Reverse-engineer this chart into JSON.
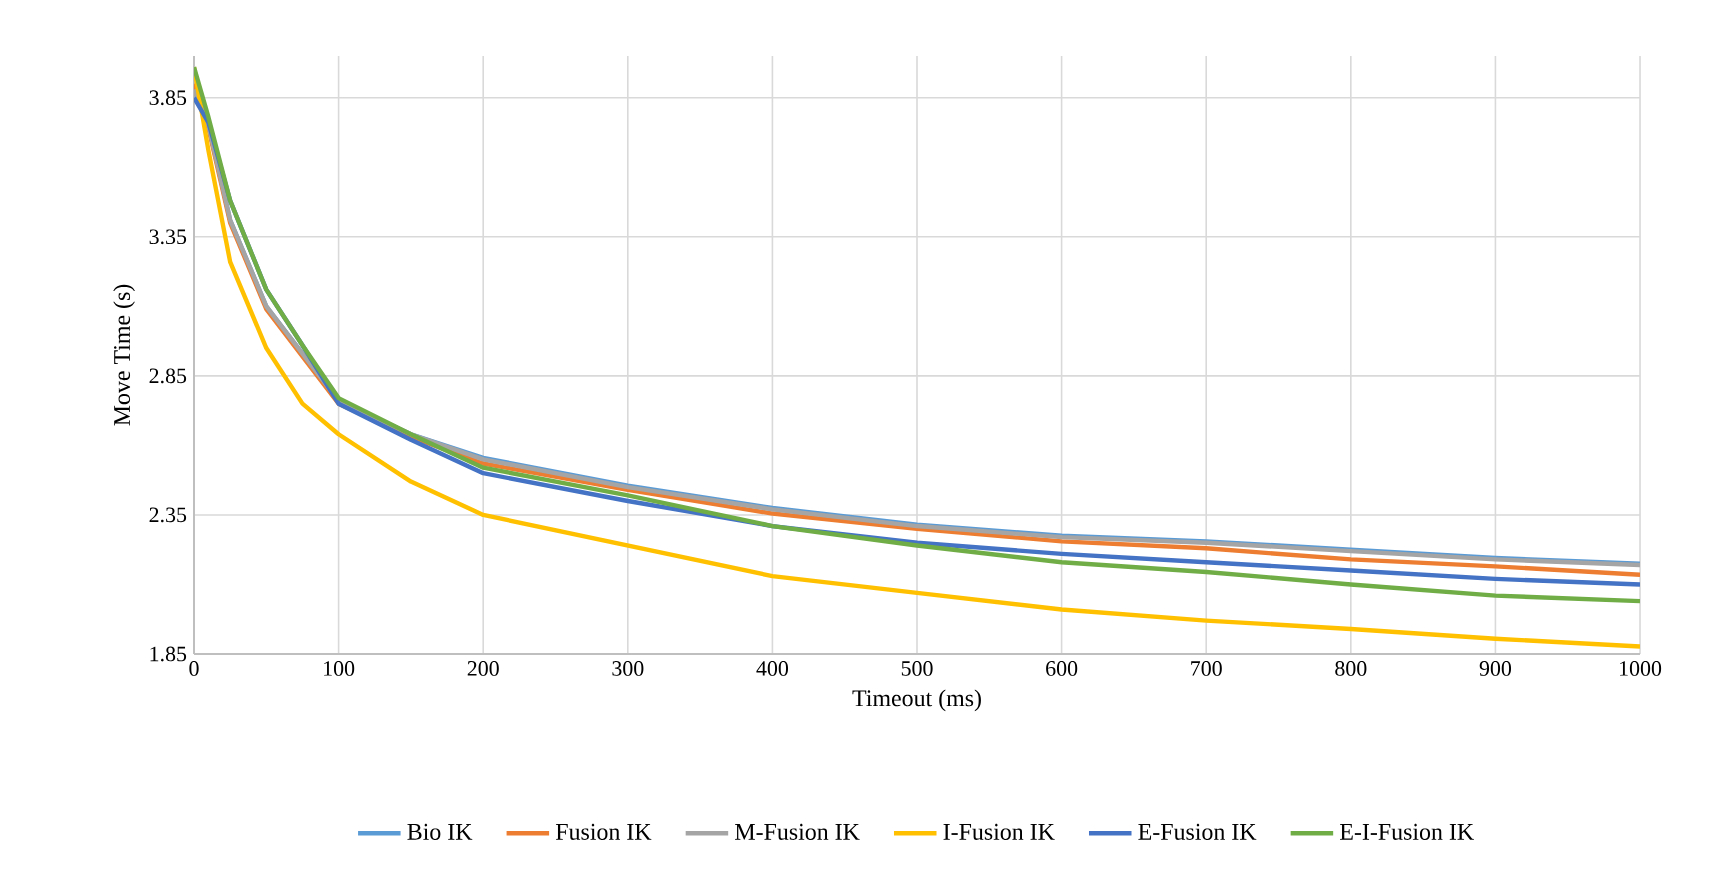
{
  "chart_data": {
    "type": "line",
    "xlabel": "Timeout (ms)",
    "ylabel": "Move Time (s)",
    "x": [
      0,
      10,
      25,
      50,
      75,
      100,
      150,
      200,
      300,
      400,
      500,
      600,
      700,
      800,
      900,
      1000
    ],
    "xlim": [
      0,
      1000
    ],
    "xticks": [
      0,
      100,
      200,
      300,
      400,
      500,
      600,
      700,
      800,
      900,
      1000
    ],
    "ylim": [
      1.85,
      4.0
    ],
    "yticks": [
      1.85,
      2.35,
      2.85,
      3.35,
      3.85
    ],
    "grid": true,
    "legend": "bottom",
    "series": [
      {
        "name": "Bio IK",
        "color": "#5b9bd5",
        "values": [
          3.88,
          3.75,
          3.41,
          3.1,
          2.93,
          2.76,
          2.64,
          2.555,
          2.455,
          2.375,
          2.315,
          2.275,
          2.255,
          2.225,
          2.195,
          2.175
        ]
      },
      {
        "name": "Fusion IK",
        "color": "#ed7d31",
        "values": [
          3.9,
          3.74,
          3.4,
          3.09,
          2.92,
          2.75,
          2.63,
          2.535,
          2.44,
          2.355,
          2.3,
          2.255,
          2.23,
          2.19,
          2.165,
          2.135
        ]
      },
      {
        "name": "M-Fusion IK",
        "color": "#a5a5a5",
        "values": [
          3.88,
          3.75,
          3.41,
          3.1,
          2.93,
          2.76,
          2.64,
          2.55,
          2.45,
          2.37,
          2.31,
          2.27,
          2.25,
          2.22,
          2.19,
          2.17
        ]
      },
      {
        "name": "I-Fusion IK",
        "color": "#ffc000",
        "values": [
          3.96,
          3.66,
          3.26,
          2.95,
          2.75,
          2.64,
          2.47,
          2.35,
          2.24,
          2.13,
          2.07,
          2.01,
          1.97,
          1.94,
          1.905,
          1.877
        ]
      },
      {
        "name": "E-Fusion IK",
        "color": "#4472c4",
        "values": [
          3.85,
          3.76,
          3.48,
          3.16,
          2.96,
          2.75,
          2.62,
          2.5,
          2.4,
          2.31,
          2.25,
          2.21,
          2.18,
          2.15,
          2.12,
          2.1
        ]
      },
      {
        "name": "E-I-Fusion IK",
        "color": "#70ad47",
        "values": [
          3.96,
          3.78,
          3.48,
          3.16,
          2.96,
          2.77,
          2.64,
          2.52,
          2.42,
          2.31,
          2.24,
          2.18,
          2.145,
          2.1,
          2.06,
          2.04
        ]
      }
    ]
  }
}
